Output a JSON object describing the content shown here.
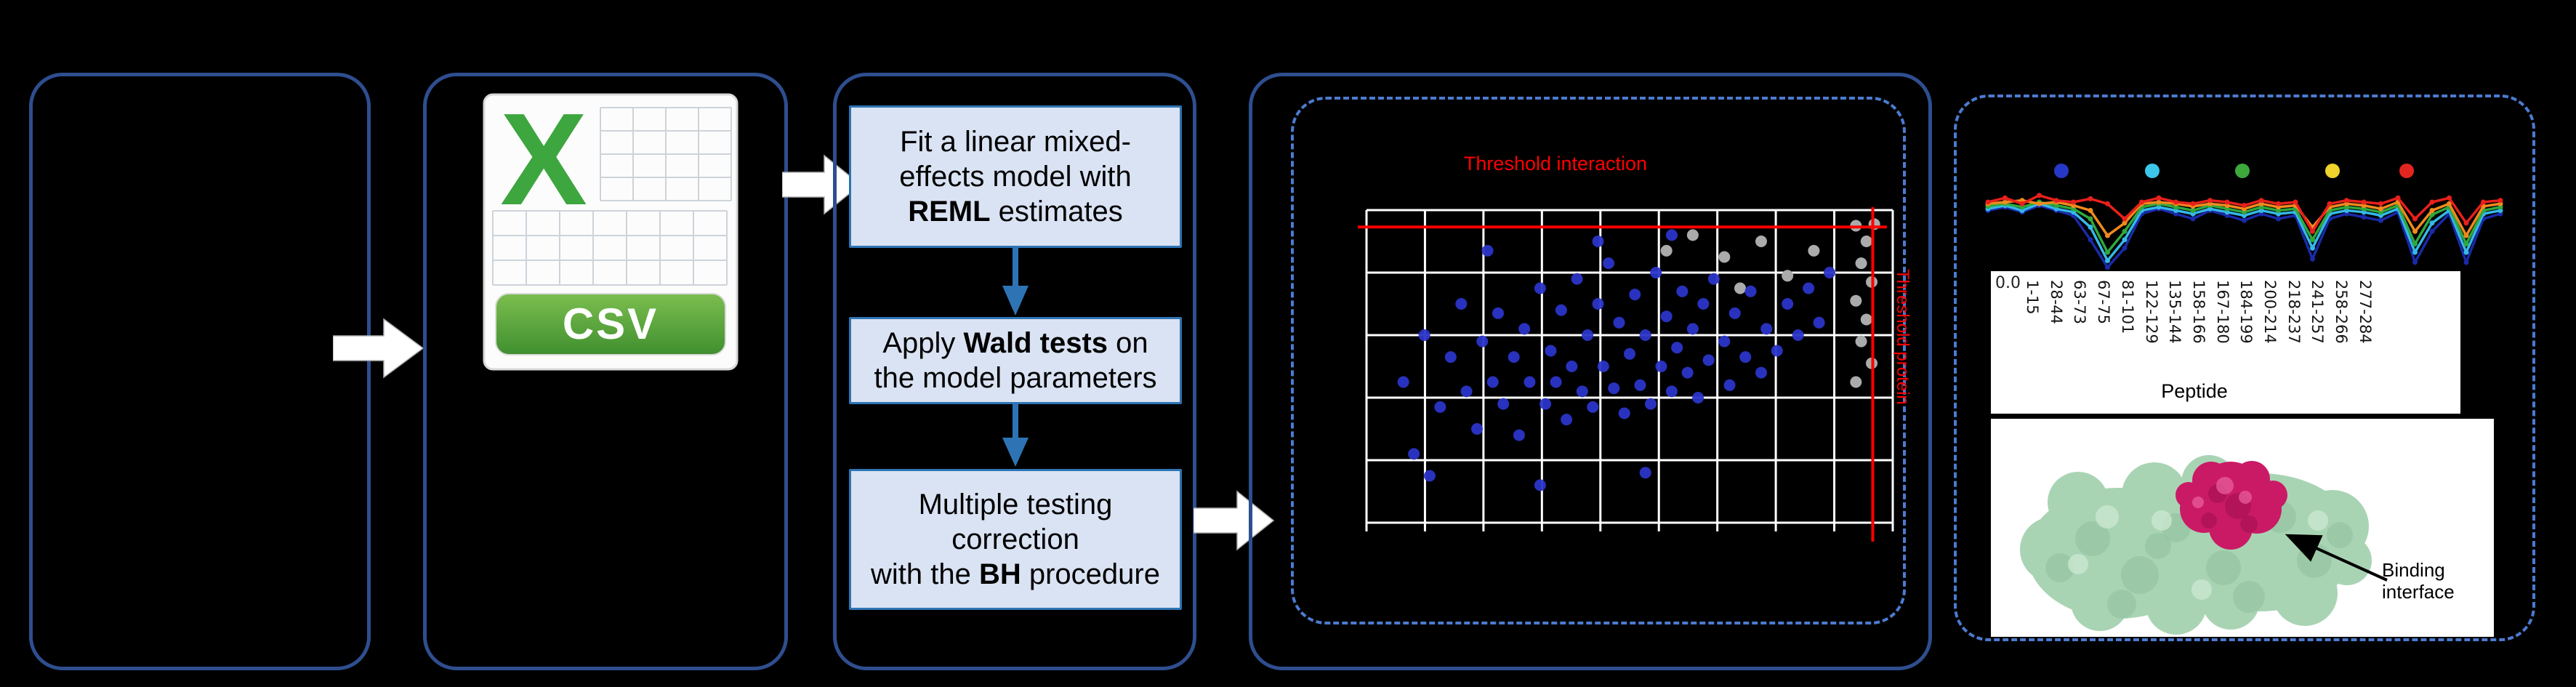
{
  "figure": {
    "background": "#000000",
    "panel_border_color": "#2E4E8F",
    "dashed_border_color": "#4C7BD0"
  },
  "csv_icon": {
    "label": "CSV",
    "x_letter": "X"
  },
  "flow": {
    "box_fill": "#DAE3F3",
    "box_border": "#2E74B5",
    "steps": [
      {
        "lines": [
          [
            {
              "t": "Fit a linear mixed-"
            }
          ],
          [
            {
              "t": "effects model with"
            }
          ],
          [
            {
              "t": "REML",
              "b": true
            },
            {
              "t": " estimates"
            }
          ]
        ]
      },
      {
        "lines": [
          [
            {
              "t": "Apply "
            },
            {
              "t": "Wald tests",
              "b": true
            },
            {
              "t": " on"
            }
          ],
          [
            {
              "t": "the model parameters"
            }
          ]
        ]
      },
      {
        "lines": [
          [
            {
              "t": "Multiple testing"
            }
          ],
          [
            {
              "t": "correction"
            }
          ],
          [
            {
              "t": "with the "
            },
            {
              "t": "BH",
              "b": true
            },
            {
              "t": " procedure"
            }
          ]
        ]
      }
    ]
  },
  "volcano": {
    "title": "Threshold interaction",
    "right_label": "Threshold protein",
    "colors": {
      "point": "#2B35C8",
      "excluded": "#ABABAB",
      "threshold": "#FF0000",
      "grid": "#FFFFFF"
    }
  },
  "results": {
    "y_tick": "0.0",
    "x_label": "Peptide",
    "binding_label": "Binding interface",
    "legend_colors": [
      "#2538C8",
      "#3BC6EA",
      "#3DA83C",
      "#EFD52B",
      "#E3251F"
    ],
    "protein_colors": {
      "surface": "#A9D4B4",
      "surface_dark": "#8FBF9D",
      "surface_light": "#C9E7CF",
      "patch": "#CA1A66",
      "patch_dark": "#9E0F4E",
      "patch_light": "#E85E9C"
    },
    "peptides": [
      "1-15",
      "28-44",
      "63-73",
      "67-75",
      "81-101",
      "122-129",
      "135-144",
      "158-166",
      "167-180",
      "184-199",
      "200-214",
      "218-237",
      "241-257",
      "258-266",
      "277-284"
    ]
  },
  "chart_data": [
    {
      "type": "scatter",
      "title": "Threshold interaction",
      "grid": {
        "cols": 9,
        "rows": 5
      },
      "thresholds": {
        "horizontal_frac": 0.054,
        "vertical_frac": 0.962
      },
      "points": {
        "blue": [
          [
            0.07,
            0.55
          ],
          [
            0.09,
            0.78
          ],
          [
            0.11,
            0.4
          ],
          [
            0.14,
            0.63
          ],
          [
            0.16,
            0.47
          ],
          [
            0.18,
            0.3
          ],
          [
            0.19,
            0.58
          ],
          [
            0.21,
            0.7
          ],
          [
            0.22,
            0.42
          ],
          [
            0.24,
            0.55
          ],
          [
            0.25,
            0.33
          ],
          [
            0.26,
            0.62
          ],
          [
            0.28,
            0.47
          ],
          [
            0.29,
            0.72
          ],
          [
            0.3,
            0.38
          ],
          [
            0.31,
            0.55
          ],
          [
            0.33,
            0.25
          ],
          [
            0.34,
            0.62
          ],
          [
            0.35,
            0.45
          ],
          [
            0.36,
            0.55
          ],
          [
            0.37,
            0.32
          ],
          [
            0.38,
            0.67
          ],
          [
            0.39,
            0.5
          ],
          [
            0.4,
            0.22
          ],
          [
            0.41,
            0.58
          ],
          [
            0.42,
            0.4
          ],
          [
            0.43,
            0.63
          ],
          [
            0.44,
            0.3
          ],
          [
            0.45,
            0.5
          ],
          [
            0.46,
            0.17
          ],
          [
            0.47,
            0.57
          ],
          [
            0.48,
            0.36
          ],
          [
            0.49,
            0.65
          ],
          [
            0.5,
            0.46
          ],
          [
            0.51,
            0.27
          ],
          [
            0.52,
            0.56
          ],
          [
            0.53,
            0.4
          ],
          [
            0.54,
            0.62
          ],
          [
            0.55,
            0.2
          ],
          [
            0.56,
            0.5
          ],
          [
            0.57,
            0.34
          ],
          [
            0.58,
            0.58
          ],
          [
            0.59,
            0.44
          ],
          [
            0.6,
            0.26
          ],
          [
            0.61,
            0.52
          ],
          [
            0.62,
            0.38
          ],
          [
            0.63,
            0.6
          ],
          [
            0.64,
            0.3
          ],
          [
            0.65,
            0.48
          ],
          [
            0.66,
            0.22
          ],
          [
            0.68,
            0.42
          ],
          [
            0.69,
            0.56
          ],
          [
            0.7,
            0.33
          ],
          [
            0.72,
            0.47
          ],
          [
            0.73,
            0.26
          ],
          [
            0.75,
            0.52
          ],
          [
            0.76,
            0.38
          ],
          [
            0.78,
            0.45
          ],
          [
            0.8,
            0.3
          ],
          [
            0.82,
            0.4
          ],
          [
            0.84,
            0.25
          ],
          [
            0.86,
            0.36
          ],
          [
            0.88,
            0.2
          ],
          [
            0.12,
            0.85
          ],
          [
            0.33,
            0.88
          ],
          [
            0.53,
            0.84
          ],
          [
            0.23,
            0.13
          ],
          [
            0.44,
            0.1
          ],
          [
            0.58,
            0.08
          ]
        ],
        "gray": [
          [
            0.93,
            0.05
          ],
          [
            0.95,
            0.1
          ],
          [
            0.94,
            0.17
          ],
          [
            0.96,
            0.23
          ],
          [
            0.93,
            0.29
          ],
          [
            0.95,
            0.35
          ],
          [
            0.94,
            0.42
          ],
          [
            0.96,
            0.49
          ],
          [
            0.93,
            0.55
          ],
          [
            0.75,
            0.1
          ],
          [
            0.68,
            0.15
          ],
          [
            0.8,
            0.21
          ],
          [
            0.62,
            0.08
          ],
          [
            0.71,
            0.25
          ],
          [
            0.85,
            0.13
          ],
          [
            0.965,
            0.045
          ],
          [
            0.57,
            0.13
          ]
        ]
      }
    },
    {
      "type": "line",
      "x_count": 31,
      "series": [
        {
          "name": "navy",
          "color": "#1A2AA8",
          "values": [
            0.7,
            0.74,
            0.68,
            0.76,
            0.7,
            0.64,
            0.35,
            0.02,
            0.25,
            0.66,
            0.72,
            0.66,
            0.6,
            0.7,
            0.64,
            0.58,
            0.66,
            0.6,
            0.64,
            0.12,
            0.6,
            0.66,
            0.62,
            0.58,
            0.68,
            0.08,
            0.45,
            0.66,
            0.08,
            0.6,
            0.66
          ]
        },
        {
          "name": "cyan",
          "color": "#35B8E8",
          "values": [
            0.72,
            0.76,
            0.7,
            0.78,
            0.72,
            0.68,
            0.5,
            0.1,
            0.35,
            0.7,
            0.74,
            0.7,
            0.66,
            0.72,
            0.68,
            0.64,
            0.7,
            0.66,
            0.68,
            0.25,
            0.66,
            0.7,
            0.68,
            0.64,
            0.72,
            0.2,
            0.55,
            0.7,
            0.2,
            0.66,
            0.7
          ]
        },
        {
          "name": "green",
          "color": "#2FA83C",
          "values": [
            0.75,
            0.78,
            0.74,
            0.8,
            0.76,
            0.72,
            0.6,
            0.2,
            0.45,
            0.74,
            0.78,
            0.74,
            0.7,
            0.76,
            0.72,
            0.68,
            0.74,
            0.7,
            0.72,
            0.35,
            0.7,
            0.74,
            0.72,
            0.68,
            0.76,
            0.3,
            0.65,
            0.74,
            0.3,
            0.7,
            0.74
          ]
        },
        {
          "name": "orange",
          "color": "#F08A1E",
          "values": [
            0.78,
            0.8,
            0.82,
            0.78,
            0.8,
            0.76,
            0.7,
            0.4,
            0.55,
            0.78,
            0.8,
            0.78,
            0.75,
            0.78,
            0.76,
            0.72,
            0.78,
            0.74,
            0.76,
            0.5,
            0.74,
            0.78,
            0.76,
            0.72,
            0.8,
            0.45,
            0.7,
            0.78,
            0.4,
            0.75,
            0.78
          ]
        },
        {
          "name": "red",
          "color": "#E8201C",
          "values": [
            0.8,
            0.85,
            0.78,
            0.88,
            0.82,
            0.8,
            0.84,
            0.78,
            0.6,
            0.8,
            0.85,
            0.8,
            0.78,
            0.82,
            0.8,
            0.76,
            0.82,
            0.78,
            0.8,
            0.45,
            0.78,
            0.82,
            0.8,
            0.78,
            0.85,
            0.6,
            0.8,
            0.85,
            0.55,
            0.8,
            0.82
          ]
        }
      ]
    }
  ]
}
